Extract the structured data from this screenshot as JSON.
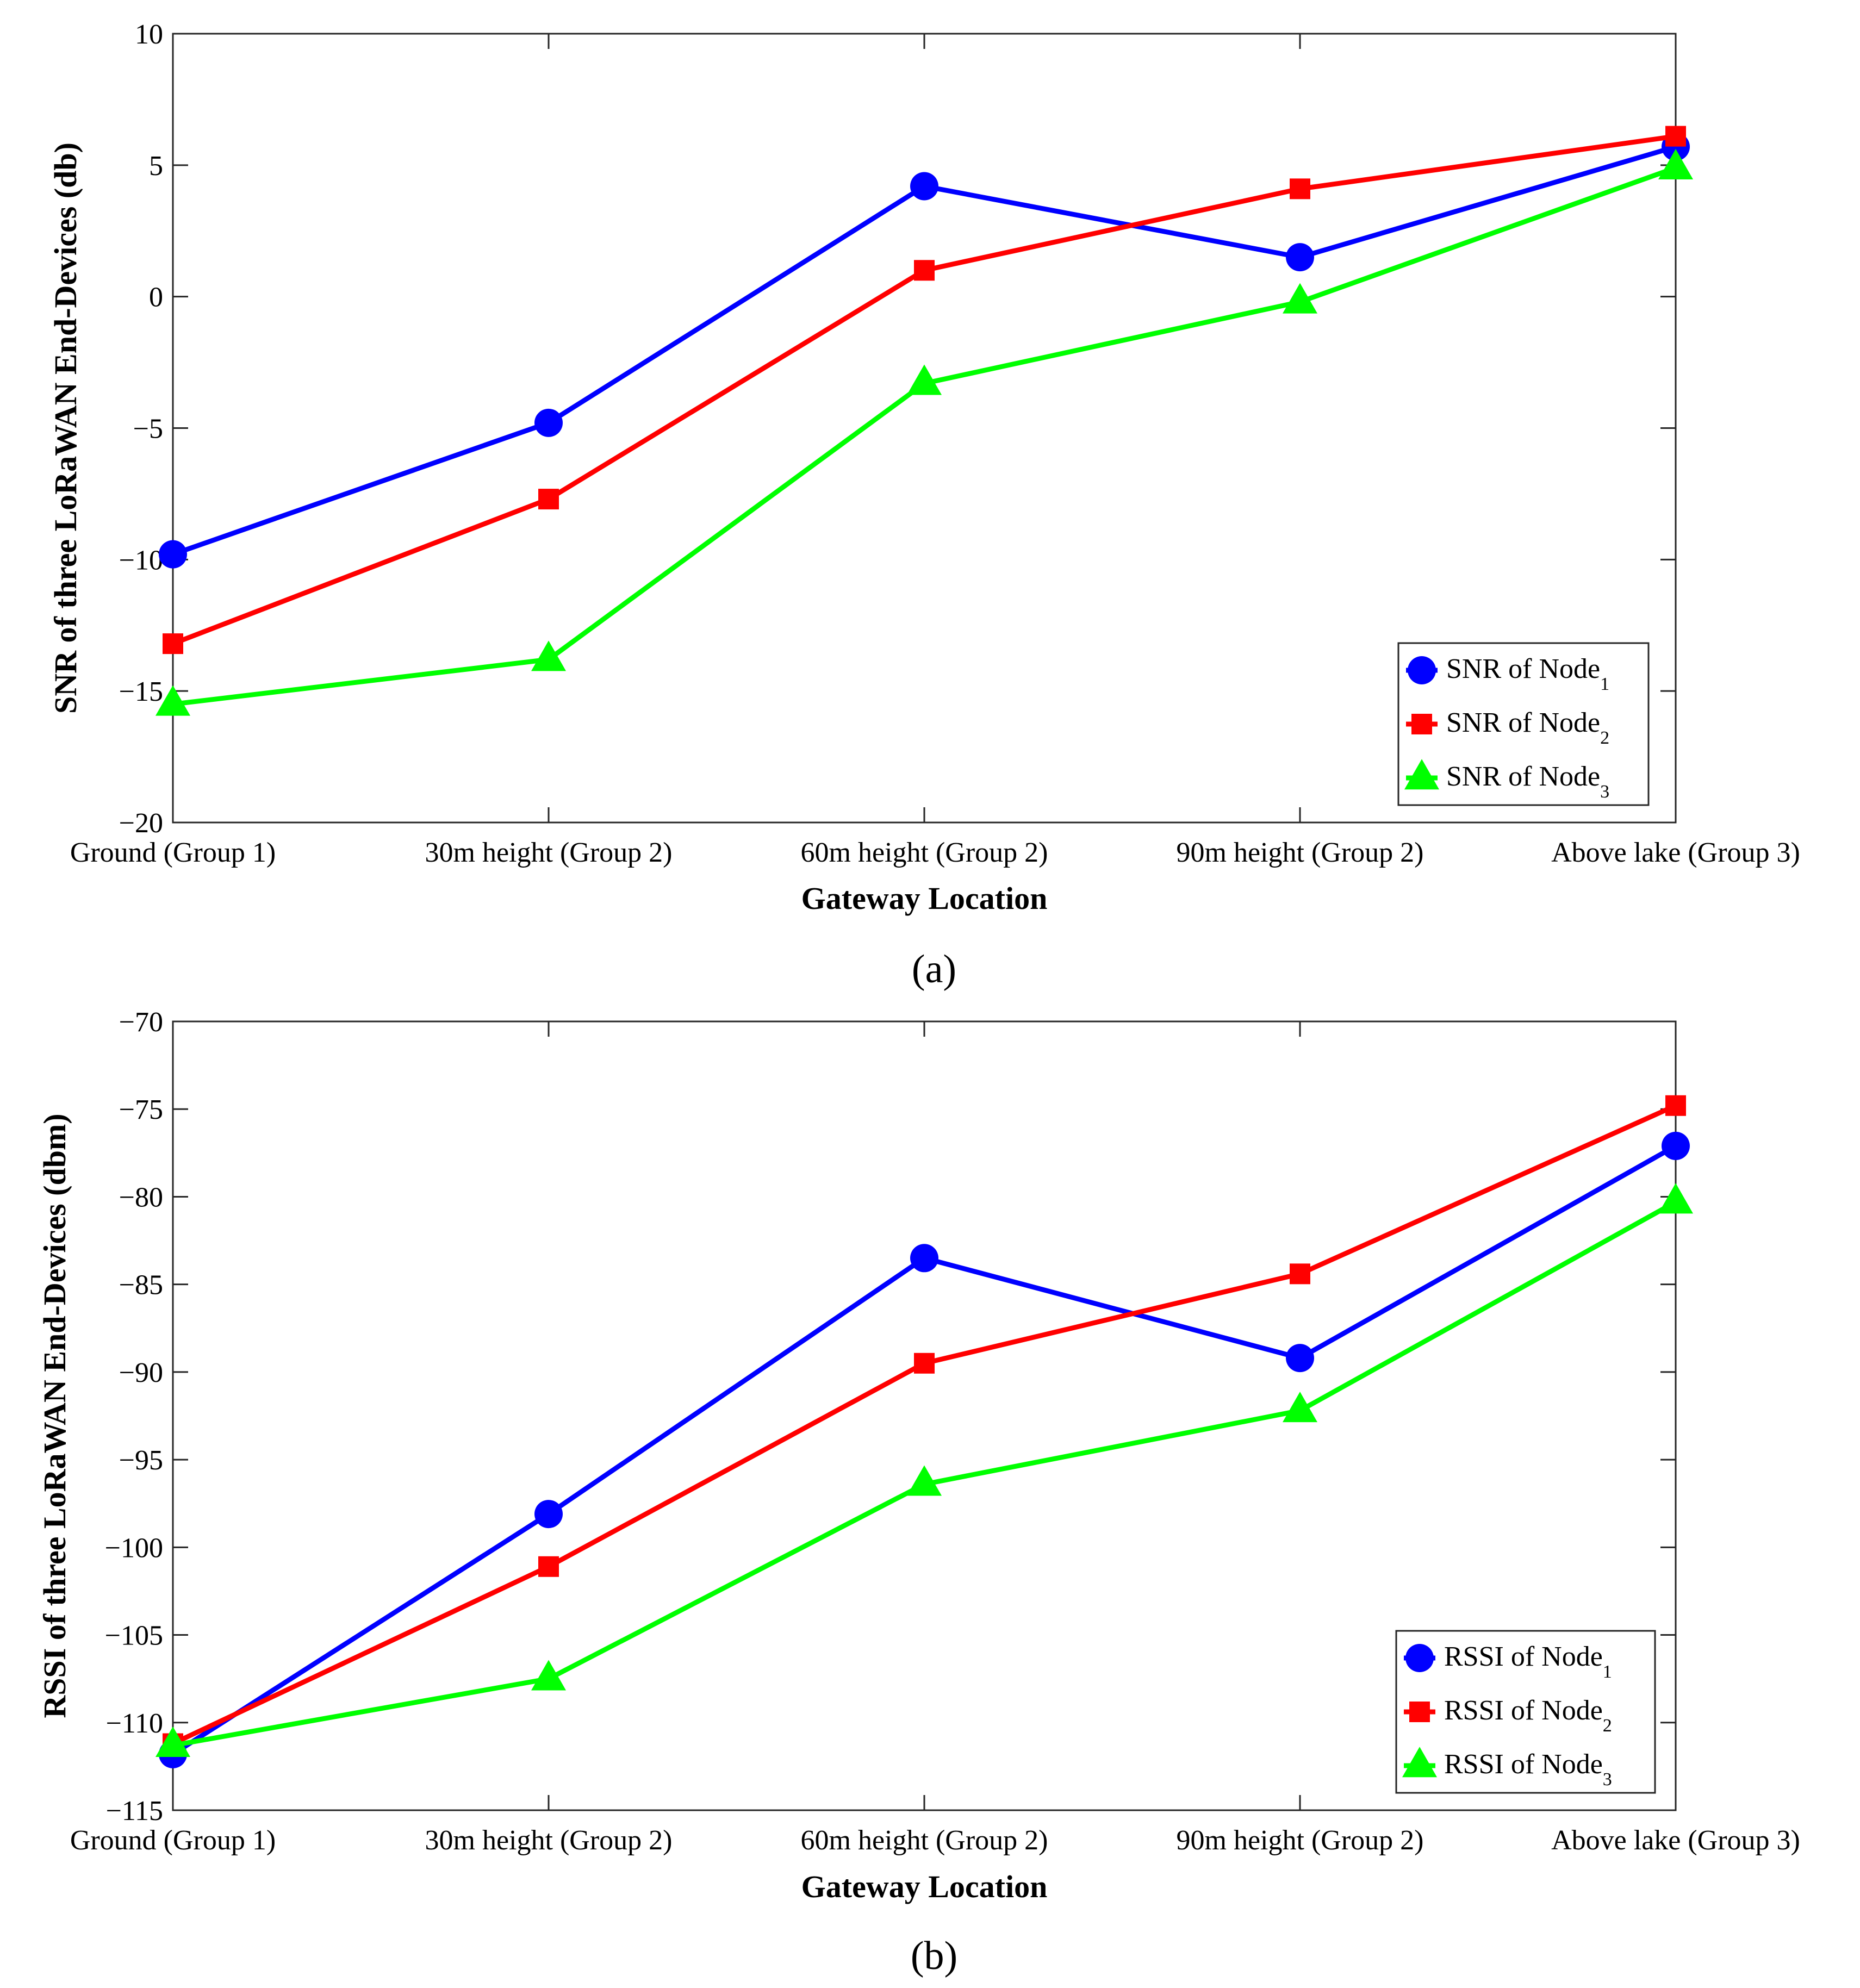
{
  "chart_data": [
    {
      "type": "line",
      "caption": "(a)",
      "categories": [
        "Ground (Group 1)",
        "30m height (Group 2)",
        "60m height (Group 2)",
        "90m height (Group 2)",
        "Above lake (Group 3)"
      ],
      "xlabel": "Gateway Location",
      "ylabel": "SNR of three LoRaWAN End-Devices (db)",
      "ylim": [
        -20,
        10
      ],
      "yticks": [
        10,
        5,
        0,
        -5,
        -10,
        -15,
        -20
      ],
      "ytick_labels": [
        "10",
        "5",
        "0",
        "−5",
        "−10",
        "−15",
        "−20"
      ],
      "legend_position": "lower-right",
      "series": [
        {
          "name": "SNR of Node",
          "subscript": "1",
          "color": "#0000ff",
          "marker": "circle",
          "values": [
            -9.8,
            -4.8,
            4.2,
            1.5,
            5.7
          ]
        },
        {
          "name": "SNR of Node",
          "subscript": "2",
          "color": "#ff0000",
          "marker": "square",
          "values": [
            -13.2,
            -7.7,
            1.0,
            4.1,
            6.1
          ]
        },
        {
          "name": "SNR of Node",
          "subscript": "3",
          "color": "#00ff00",
          "marker": "triangle",
          "values": [
            -15.5,
            -13.8,
            -3.3,
            -0.2,
            4.9
          ]
        }
      ]
    },
    {
      "type": "line",
      "caption": "(b)",
      "categories": [
        "Ground (Group 1)",
        "30m height (Group 2)",
        "60m height (Group 2)",
        "90m height (Group 2)",
        "Above lake (Group 3)"
      ],
      "xlabel": "Gateway Location",
      "ylabel": "RSSI of three LoRaWAN End-Devices (dbm)",
      "ylim": [
        -115,
        -70
      ],
      "yticks": [
        -70,
        -75,
        -80,
        -85,
        -90,
        -95,
        -100,
        -105,
        -110,
        -115
      ],
      "ytick_labels": [
        "−70",
        "−75",
        "−80",
        "−85",
        "−90",
        "−95",
        "−100",
        "−105",
        "−110",
        "−115"
      ],
      "legend_position": "lower-right",
      "series": [
        {
          "name": "RSSI of Node",
          "subscript": "1",
          "color": "#0000ff",
          "marker": "circle",
          "values": [
            -111.8,
            -98.1,
            -83.5,
            -89.2,
            -77.1
          ]
        },
        {
          "name": "RSSI of Node",
          "subscript": "2",
          "color": "#ff0000",
          "marker": "square",
          "values": [
            -111.2,
            -101.1,
            -89.5,
            -84.4,
            -74.8
          ]
        },
        {
          "name": "RSSI of Node",
          "subscript": "3",
          "color": "#00ff00",
          "marker": "triangle",
          "values": [
            -111.3,
            -107.5,
            -96.4,
            -92.2,
            -80.3
          ]
        }
      ]
    }
  ]
}
